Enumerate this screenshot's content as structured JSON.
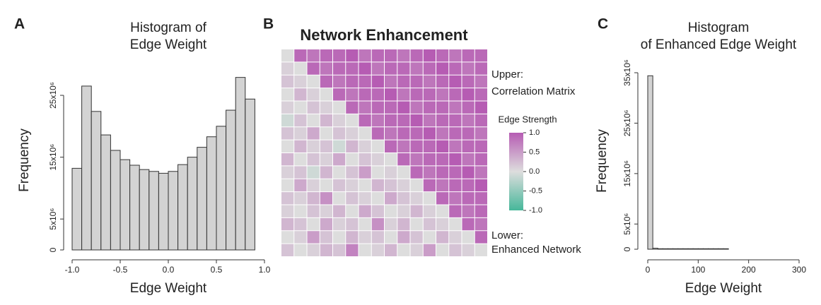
{
  "chart_data": [
    {
      "type": "histogram",
      "panel": "A",
      "title": [
        "Histogram of",
        "Edge Weight"
      ],
      "xlabel": "Edge Weight",
      "ylabel": "Frequency",
      "bins": [
        -1.0,
        -0.9,
        -0.8,
        -0.7,
        -0.6,
        -0.5,
        -0.4,
        -0.3,
        -0.2,
        -0.1,
        0.0,
        0.1,
        0.2,
        0.3,
        0.4,
        0.5,
        0.6,
        0.7,
        0.8,
        0.9,
        1.0
      ],
      "values": [
        13200000,
        26500000,
        22400000,
        18600000,
        16100000,
        14600000,
        13700000,
        13000000,
        12700000,
        12400000,
        12700000,
        13800000,
        15000000,
        16600000,
        18300000,
        20000000,
        22600000,
        27900000,
        24400000,
        0
      ],
      "color": "#d3d3d3",
      "xlim": [
        -1,
        1
      ],
      "xticks": [
        {
          "value": -1,
          "label": "-1.0"
        },
        -0.5,
        {
          "value": 0,
          "label": "0.0"
        },
        0.5,
        {
          "value": 1,
          "label": "1.0"
        }
      ],
      "ylim": [
        0,
        29000000
      ],
      "yticks": [
        0,
        {
          "value": 5000000,
          "label": "5x10⁶"
        },
        {
          "value": 15000000,
          "label": "15x10⁶"
        },
        {
          "value": 25000000,
          "label": "25x10⁶"
        }
      ]
    },
    {
      "type": "heatmap",
      "panel": "B",
      "title": "Network Enhancement",
      "annotations": [
        "Upper:",
        "Correlation Matrix",
        "Lower:",
        "Enhanced Network"
      ],
      "colorbar_title": "Edge Strength",
      "colors": [
        "#46b79a",
        "#dddddd",
        "#b65cb3"
      ],
      "zlim": [
        -1,
        1
      ],
      "zticks": [
        {
          "value": 1,
          "label": "1.0"
        },
        0.5,
        {
          "value": 0,
          "label": "0.0"
        },
        -0.5,
        {
          "value": -1,
          "label": "-1.0"
        }
      ],
      "z": [
        [
          0,
          0.9,
          0.8,
          0.9,
          0.9,
          1.0,
          0.8,
          0.9,
          0.9,
          0.8,
          0.9,
          1.0,
          0.9,
          0.8,
          0.9,
          0.9
        ],
        [
          0.1,
          0,
          0.9,
          0.8,
          0.9,
          0.9,
          1.0,
          0.8,
          0.9,
          0.9,
          0.8,
          0.9,
          1.0,
          0.9,
          0.8,
          0.9
        ],
        [
          0.2,
          0.1,
          0,
          0.9,
          0.8,
          0.9,
          0.9,
          1.0,
          0.8,
          0.9,
          0.9,
          0.8,
          0.9,
          1.0,
          0.9,
          0.8
        ],
        [
          0.0,
          0.3,
          0.1,
          0,
          0.9,
          0.8,
          0.9,
          0.9,
          1.0,
          0.8,
          0.9,
          0.9,
          0.8,
          0.9,
          1.0,
          0.9
        ],
        [
          0.1,
          0.0,
          0.2,
          0.1,
          0,
          0.9,
          0.8,
          0.9,
          0.9,
          1.0,
          0.8,
          0.9,
          0.9,
          0.8,
          0.9,
          1.0
        ],
        [
          -0.1,
          0.2,
          0.0,
          0.3,
          0.1,
          0,
          0.9,
          0.8,
          0.9,
          0.9,
          1.0,
          0.8,
          0.9,
          0.9,
          0.8,
          0.9
        ],
        [
          0.2,
          0.1,
          0.4,
          0.0,
          0.2,
          0.1,
          0,
          0.9,
          0.8,
          0.9,
          0.9,
          1.0,
          0.8,
          0.9,
          0.9,
          0.8
        ],
        [
          0.0,
          0.3,
          0.1,
          0.2,
          -0.1,
          0.3,
          0.1,
          0,
          0.9,
          0.8,
          0.9,
          0.9,
          1.0,
          0.8,
          0.9,
          0.9
        ],
        [
          0.3,
          0.0,
          0.2,
          0.1,
          0.4,
          0.0,
          0.2,
          0.1,
          0,
          0.9,
          0.8,
          0.9,
          0.9,
          1.0,
          0.8,
          0.9
        ],
        [
          0.1,
          0.2,
          -0.1,
          0.3,
          0.0,
          0.2,
          0.5,
          0.0,
          0.1,
          0,
          0.9,
          0.8,
          0.9,
          0.9,
          1.0,
          0.8
        ],
        [
          0.0,
          0.4,
          0.1,
          0.0,
          0.2,
          0.1,
          0.0,
          0.3,
          0.2,
          0.1,
          0,
          0.9,
          0.8,
          0.9,
          0.9,
          1.0
        ],
        [
          0.2,
          0.1,
          0.3,
          0.6,
          0.0,
          0.2,
          0.1,
          0.0,
          0.4,
          0.2,
          0.1,
          0,
          0.9,
          0.8,
          0.9,
          0.9
        ],
        [
          0.1,
          0.0,
          0.2,
          0.1,
          0.3,
          0.0,
          0.4,
          0.2,
          0.0,
          0.1,
          0.3,
          0.1,
          0,
          0.9,
          0.8,
          0.9
        ],
        [
          0.3,
          0.2,
          0.0,
          0.4,
          0.1,
          0.2,
          0.0,
          0.6,
          0.1,
          0.3,
          0.0,
          0.2,
          0.1,
          0,
          0.9,
          0.8
        ],
        [
          0.0,
          0.1,
          0.5,
          0.2,
          0.0,
          0.3,
          0.1,
          0.2,
          0.0,
          0.4,
          0.2,
          0.0,
          0.3,
          0.1,
          0,
          0.9
        ],
        [
          0.2,
          0.0,
          0.1,
          0.3,
          0.2,
          0.7,
          0.0,
          0.1,
          0.3,
          0.0,
          0.1,
          0.5,
          0.0,
          0.2,
          0.1,
          0
        ]
      ]
    },
    {
      "type": "histogram",
      "panel": "C",
      "title": [
        "Histogram",
        "of Enhanced Edge Weight"
      ],
      "xlabel": "Edge Weight",
      "ylabel": "Frequency",
      "bins": [
        0,
        10,
        20,
        30,
        40,
        50,
        60,
        70,
        80,
        90,
        100,
        110,
        120,
        130,
        140,
        150,
        160,
        170,
        180,
        190,
        200,
        210,
        220,
        230,
        240,
        250,
        260,
        270,
        280,
        290,
        300
      ],
      "values": [
        34400000,
        200000,
        100000,
        100000,
        100000,
        100000,
        100000,
        100000,
        100000,
        100000,
        100000,
        100000,
        100000,
        100000,
        100000,
        100000,
        0,
        0,
        0,
        0,
        0,
        0,
        0,
        0,
        0,
        0,
        0,
        0,
        0,
        0
      ],
      "color": "#d3d3d3",
      "xlim": [
        0,
        300
      ],
      "xticks": [
        0,
        100,
        200,
        300
      ],
      "ylim": [
        0,
        35000000
      ],
      "yticks": [
        0,
        {
          "value": 5000000,
          "label": "5x10⁶"
        },
        {
          "value": 15000000,
          "label": "15x10⁶"
        },
        {
          "value": 25000000,
          "label": "25x10⁶"
        },
        {
          "value": 35000000,
          "label": "35x10⁶"
        }
      ]
    }
  ]
}
